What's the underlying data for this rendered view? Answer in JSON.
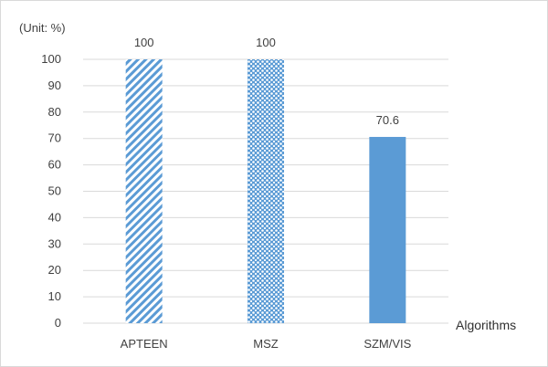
{
  "chart_data": {
    "type": "bar",
    "unit_label": "(Unit: %)",
    "xlabel": "Algorithms",
    "categories": [
      "APTEEN",
      "MSZ",
      "SZM/VIS"
    ],
    "values": [
      100,
      100,
      70.6
    ],
    "data_labels": [
      "100",
      "100",
      "70.6"
    ],
    "ylim": [
      0,
      100
    ],
    "yticks": [
      0,
      10,
      20,
      30,
      40,
      50,
      60,
      70,
      80,
      90,
      100
    ],
    "grid": true,
    "legend": "none",
    "bar_fills": [
      "diagonal-hatch",
      "dotted",
      "solid"
    ],
    "bar_color": "#5b9bd5",
    "grid_color": "#d9d9d9"
  }
}
